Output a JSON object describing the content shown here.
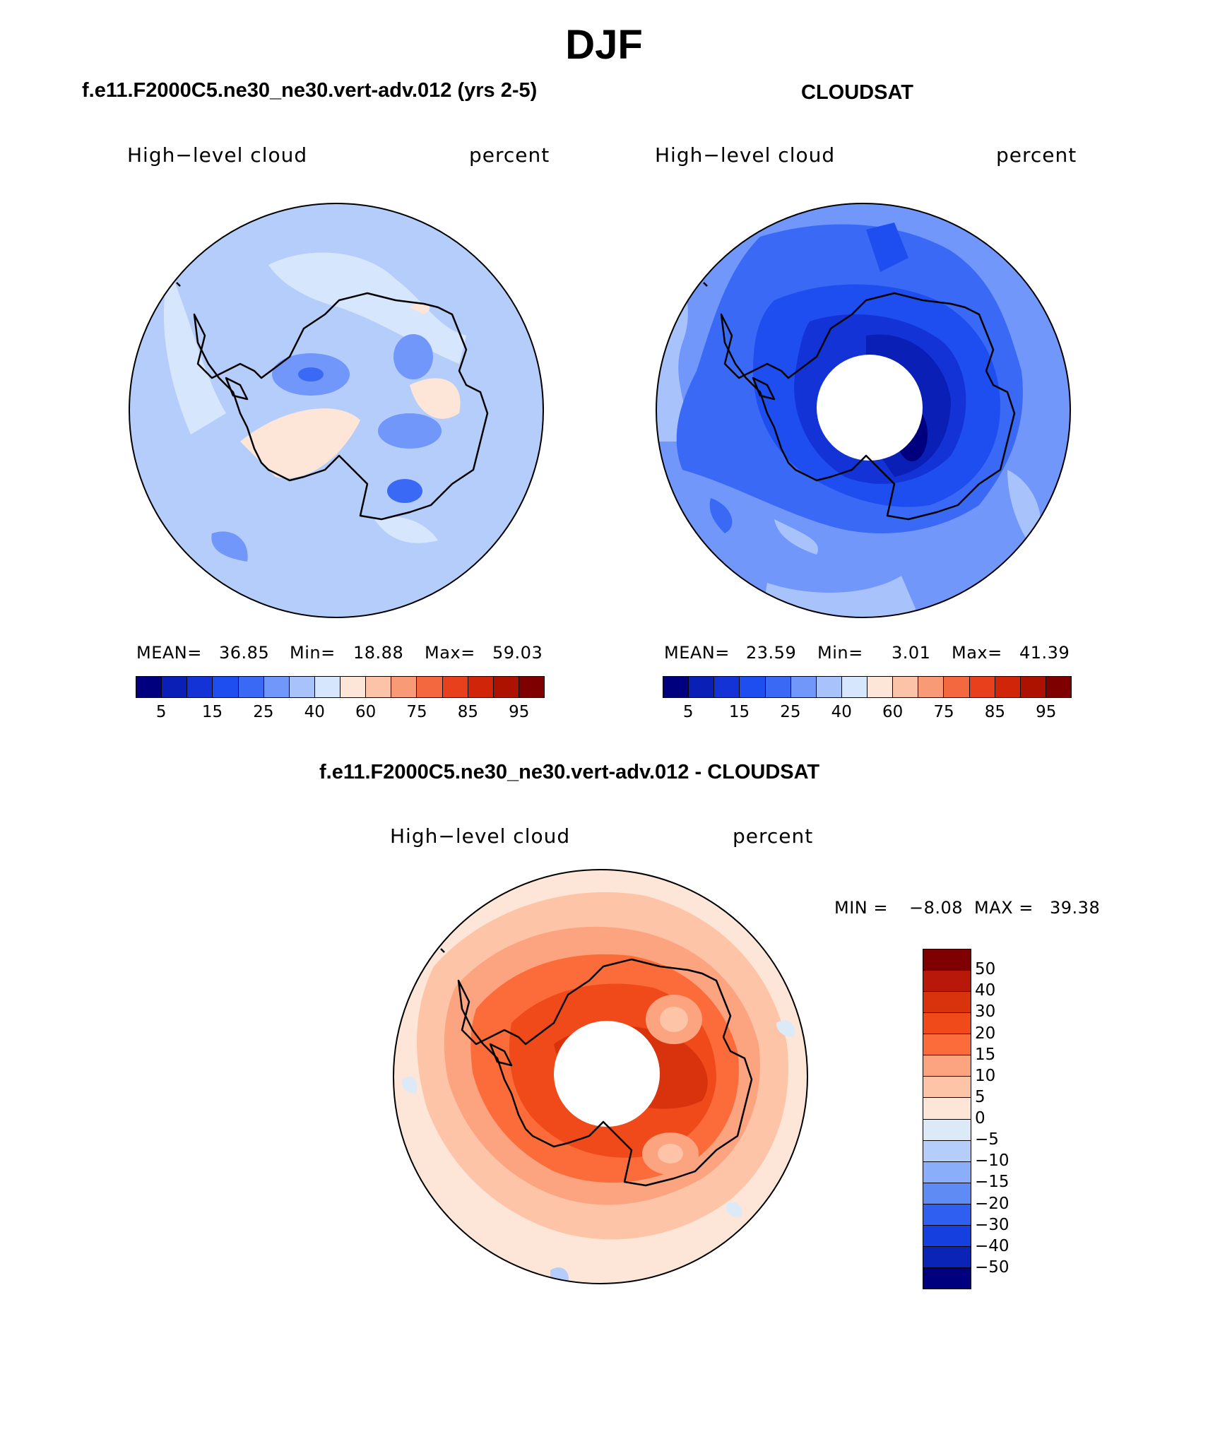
{
  "figure": {
    "title": "DJF"
  },
  "panels": {
    "model": {
      "title": "f.e11.F2000C5.ne30_ne30.vert-adv.012 (yrs 2-5)",
      "variable": "High−level cloud",
      "units": "percent",
      "mean_label": "MEAN=",
      "mean": "36.85",
      "min_label": "Min=",
      "min": "18.88",
      "max_label": "Max=",
      "max": "59.03"
    },
    "obs": {
      "title": "CLOUDSAT",
      "variable": "High−level cloud",
      "units": "percent",
      "mean_label": "MEAN=",
      "mean": "23.59",
      "min_label": "Min=",
      "min": "3.01",
      "max_label": "Max=",
      "max": "41.39"
    },
    "diff": {
      "title": "f.e11.F2000C5.ne30_ne30.vert-adv.012 - CLOUDSAT",
      "variable": "High−level cloud",
      "units": "percent",
      "min_label": "MIN =",
      "min": "−8.08",
      "max_label": "MAX =",
      "max": "39.38"
    }
  },
  "colorbar_abs": {
    "colors": [
      "#00007f",
      "#0a1fb5",
      "#1433d6",
      "#1f4ef0",
      "#3a6af5",
      "#7197fb",
      "#a8c3fc",
      "#d6e6fd",
      "#fde6d8",
      "#fcc3a8",
      "#f99a76",
      "#f4683f",
      "#e8401d",
      "#d02509",
      "#ad1100",
      "#7f0000"
    ],
    "labels": [
      "5",
      "15",
      "25",
      "40",
      "60",
      "75",
      "85",
      "95"
    ]
  },
  "colorbar_diff": {
    "colors": [
      "#7f0000",
      "#b8180a",
      "#d9330d",
      "#f04a1a",
      "#fb6c3a",
      "#fca380",
      "#fdc4a7",
      "#fde6d8",
      "#dceaf8",
      "#b5cdfb",
      "#8aaef9",
      "#5e8cf4",
      "#2f5ff0",
      "#163fe0",
      "#0a24b8",
      "#00007f"
    ],
    "labels": [
      "50",
      "40",
      "30",
      "20",
      "15",
      "10",
      "5",
      "0",
      "−5",
      "−10",
      "−15",
      "−20",
      "−30",
      "−40",
      "−50"
    ]
  },
  "chart_data": {
    "type": "heatmap",
    "projection": "south-polar-stereographic",
    "season": "DJF",
    "field": "High-level cloud (percent)",
    "abs_levels": [
      5,
      10,
      15,
      20,
      25,
      30,
      40,
      50,
      60,
      70,
      75,
      80,
      85,
      90,
      95
    ],
    "diff_levels": [
      -50,
      -40,
      -30,
      -20,
      -15,
      -10,
      -5,
      0,
      5,
      10,
      15,
      20,
      30,
      40,
      50
    ],
    "panels": [
      {
        "name": "model",
        "mean": 36.85,
        "min": 18.88,
        "max": 59.03
      },
      {
        "name": "CLOUDSAT",
        "mean": 23.59,
        "min": 3.01,
        "max": 41.39
      },
      {
        "name": "model - CLOUDSAT",
        "min": -8.08,
        "max": 39.38
      }
    ]
  }
}
